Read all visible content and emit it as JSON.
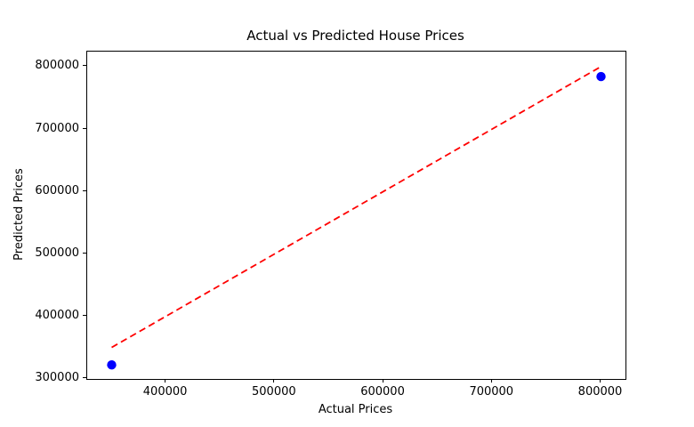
{
  "chart_data": {
    "type": "scatter",
    "title": "Actual vs Predicted House Prices",
    "xlabel": "Actual Prices",
    "ylabel": "Predicted Prices",
    "points": [
      {
        "x": 350000,
        "y": 322000
      },
      {
        "x": 800000,
        "y": 784000
      }
    ],
    "reference_line": {
      "x": [
        350000,
        800000
      ],
      "y": [
        350000,
        800000
      ],
      "style": "dashed",
      "color": "#ff0000"
    },
    "point_color": "#0000ff",
    "background_color": "#ffffff",
    "spine_color": "#000000",
    "text_color": "#000000",
    "xlim": [
      327500,
      822500
    ],
    "ylim": [
      299500,
      824000
    ],
    "xticks": [
      400000,
      500000,
      600000,
      700000,
      800000
    ],
    "xtick_labels": [
      "400000",
      "500000",
      "600000",
      "700000",
      "800000"
    ],
    "yticks": [
      300000,
      400000,
      500000,
      600000,
      700000,
      800000
    ],
    "ytick_labels": [
      "300000",
      "400000",
      "500000",
      "600000",
      "700000",
      "800000"
    ],
    "grid": false,
    "legend": null
  }
}
